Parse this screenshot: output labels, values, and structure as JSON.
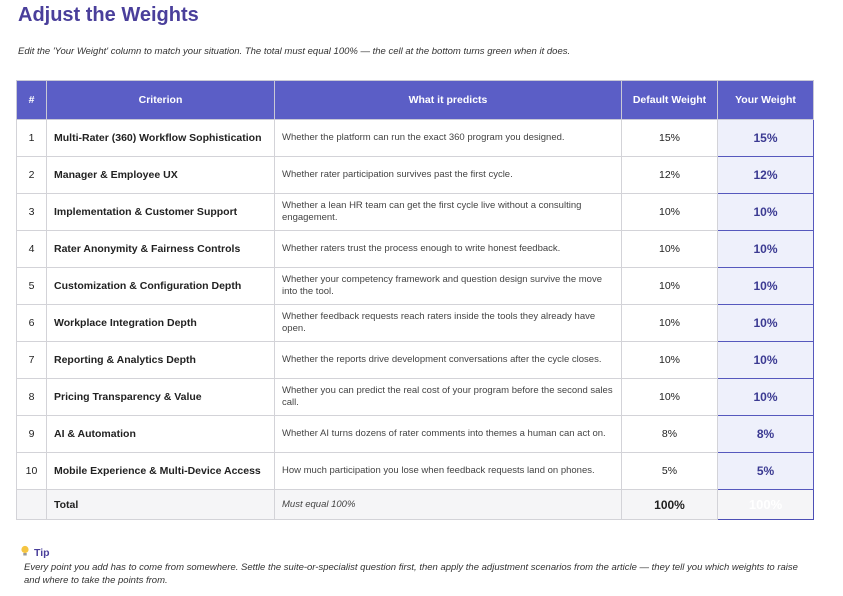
{
  "header": {
    "title": "Adjust the Weights",
    "subtitle": "Edit the 'Your Weight' column to match your situation. The total must equal 100% — the cell at the bottom turns green when it does."
  },
  "table": {
    "header": [
      "#",
      "Criterion",
      "What it predicts",
      "Default Weight",
      "Your Weight"
    ],
    "rows": [
      [
        "1",
        "Multi-Rater (360) Workflow Sophistication",
        "Whether the platform can run the exact 360 program you designed.",
        "15%",
        "15%"
      ],
      [
        "2",
        "Manager & Employee UX",
        "Whether rater participation survives past the first cycle.",
        "12%",
        "12%"
      ],
      [
        "3",
        "Implementation & Customer Support",
        "Whether a lean HR team can get the first cycle live without a consulting engagement.",
        "10%",
        "10%"
      ],
      [
        "4",
        "Rater Anonymity & Fairness Controls",
        "Whether raters trust the process enough to write honest feedback.",
        "10%",
        "10%"
      ],
      [
        "5",
        "Customization & Configuration Depth",
        "Whether your competency framework and question design survive the move into the tool.",
        "10%",
        "10%"
      ],
      [
        "6",
        "Workplace Integration Depth",
        "Whether feedback requests reach raters inside the tools they already have open.",
        "10%",
        "10%"
      ],
      [
        "7",
        "Reporting & Analytics Depth",
        "Whether the reports drive development conversations after the cycle closes.",
        "10%",
        "10%"
      ],
      [
        "8",
        "Pricing Transparency & Value",
        "Whether you can predict the real cost of your program before the second sales call.",
        "10%",
        "10%"
      ],
      [
        "9",
        "AI & Automation",
        "Whether AI turns dozens of rater comments into themes a human can act on.",
        "8%",
        "8%"
      ],
      [
        "10",
        "Mobile Experience & Multi-Device Access",
        "How much participation you lose when feedback requests land on phones.",
        "5%",
        "5%"
      ]
    ],
    "total": [
      "Total",
      "Must equal 100%",
      "100%",
      "100%"
    ]
  },
  "tip": {
    "label": "Tip",
    "text": "Every point you add has to come from somewhere. Settle the suite-or-specialist question first, then apply the adjustment scenarios from the article — they tell you which weights to raise and where to take the points from."
  }
}
